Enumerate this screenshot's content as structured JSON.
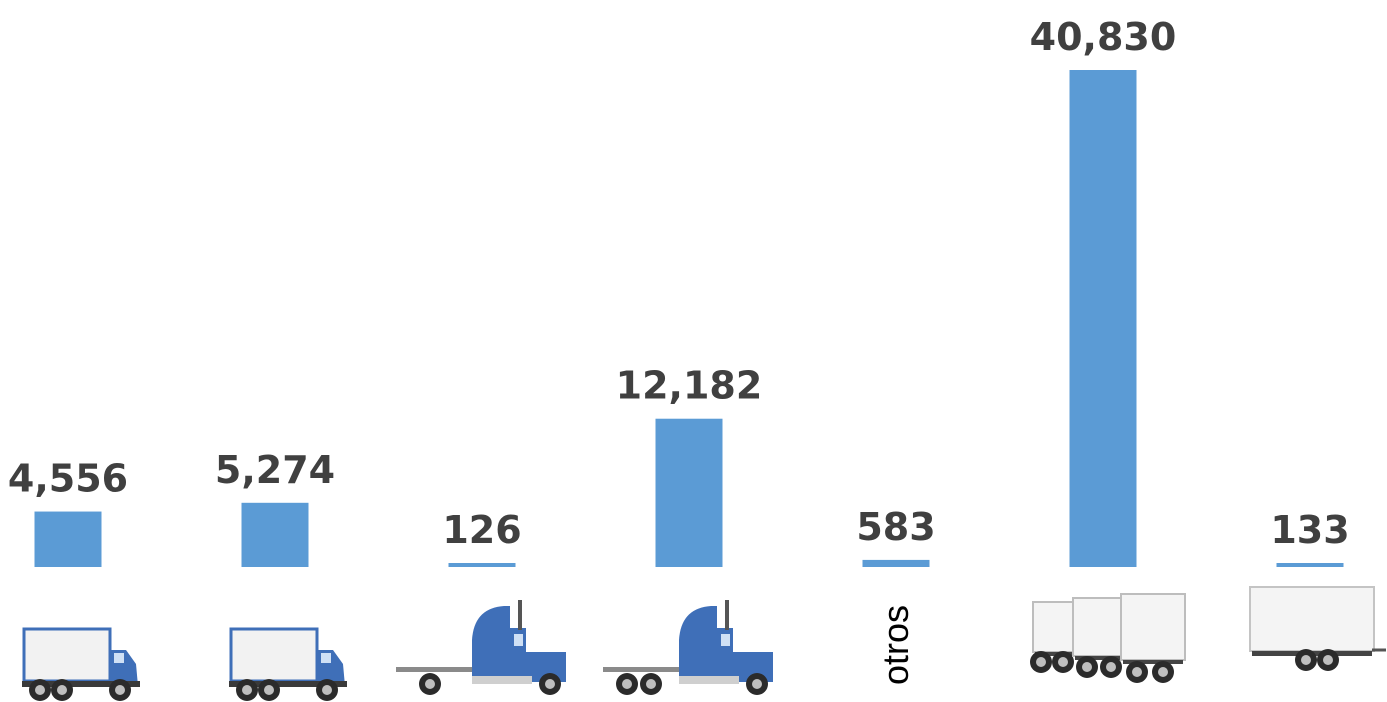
{
  "chart_data": {
    "type": "bar",
    "categories": [
      {
        "icon": "box-truck-icon",
        "label": ""
      },
      {
        "icon": "box-truck-icon",
        "label": ""
      },
      {
        "icon": "tractor-single-axle-icon",
        "label": ""
      },
      {
        "icon": "tractor-tandem-axle-icon",
        "label": ""
      },
      {
        "icon": "",
        "label": "otros"
      },
      {
        "icon": "semi-trailers-icon",
        "label": ""
      },
      {
        "icon": "trailer-icon",
        "label": ""
      }
    ],
    "values": [
      4556,
      5274,
      126,
      12182,
      583,
      40830,
      133
    ],
    "value_labels": [
      "4,556",
      "5,274",
      "126",
      "12,182",
      "583",
      "40,830",
      "133"
    ],
    "bar_color": "#5B9BD5",
    "truck_color": "#3F6FB8",
    "label_color": "#404040",
    "grid": false,
    "legend": "none",
    "ylim": [
      0,
      40830
    ]
  }
}
